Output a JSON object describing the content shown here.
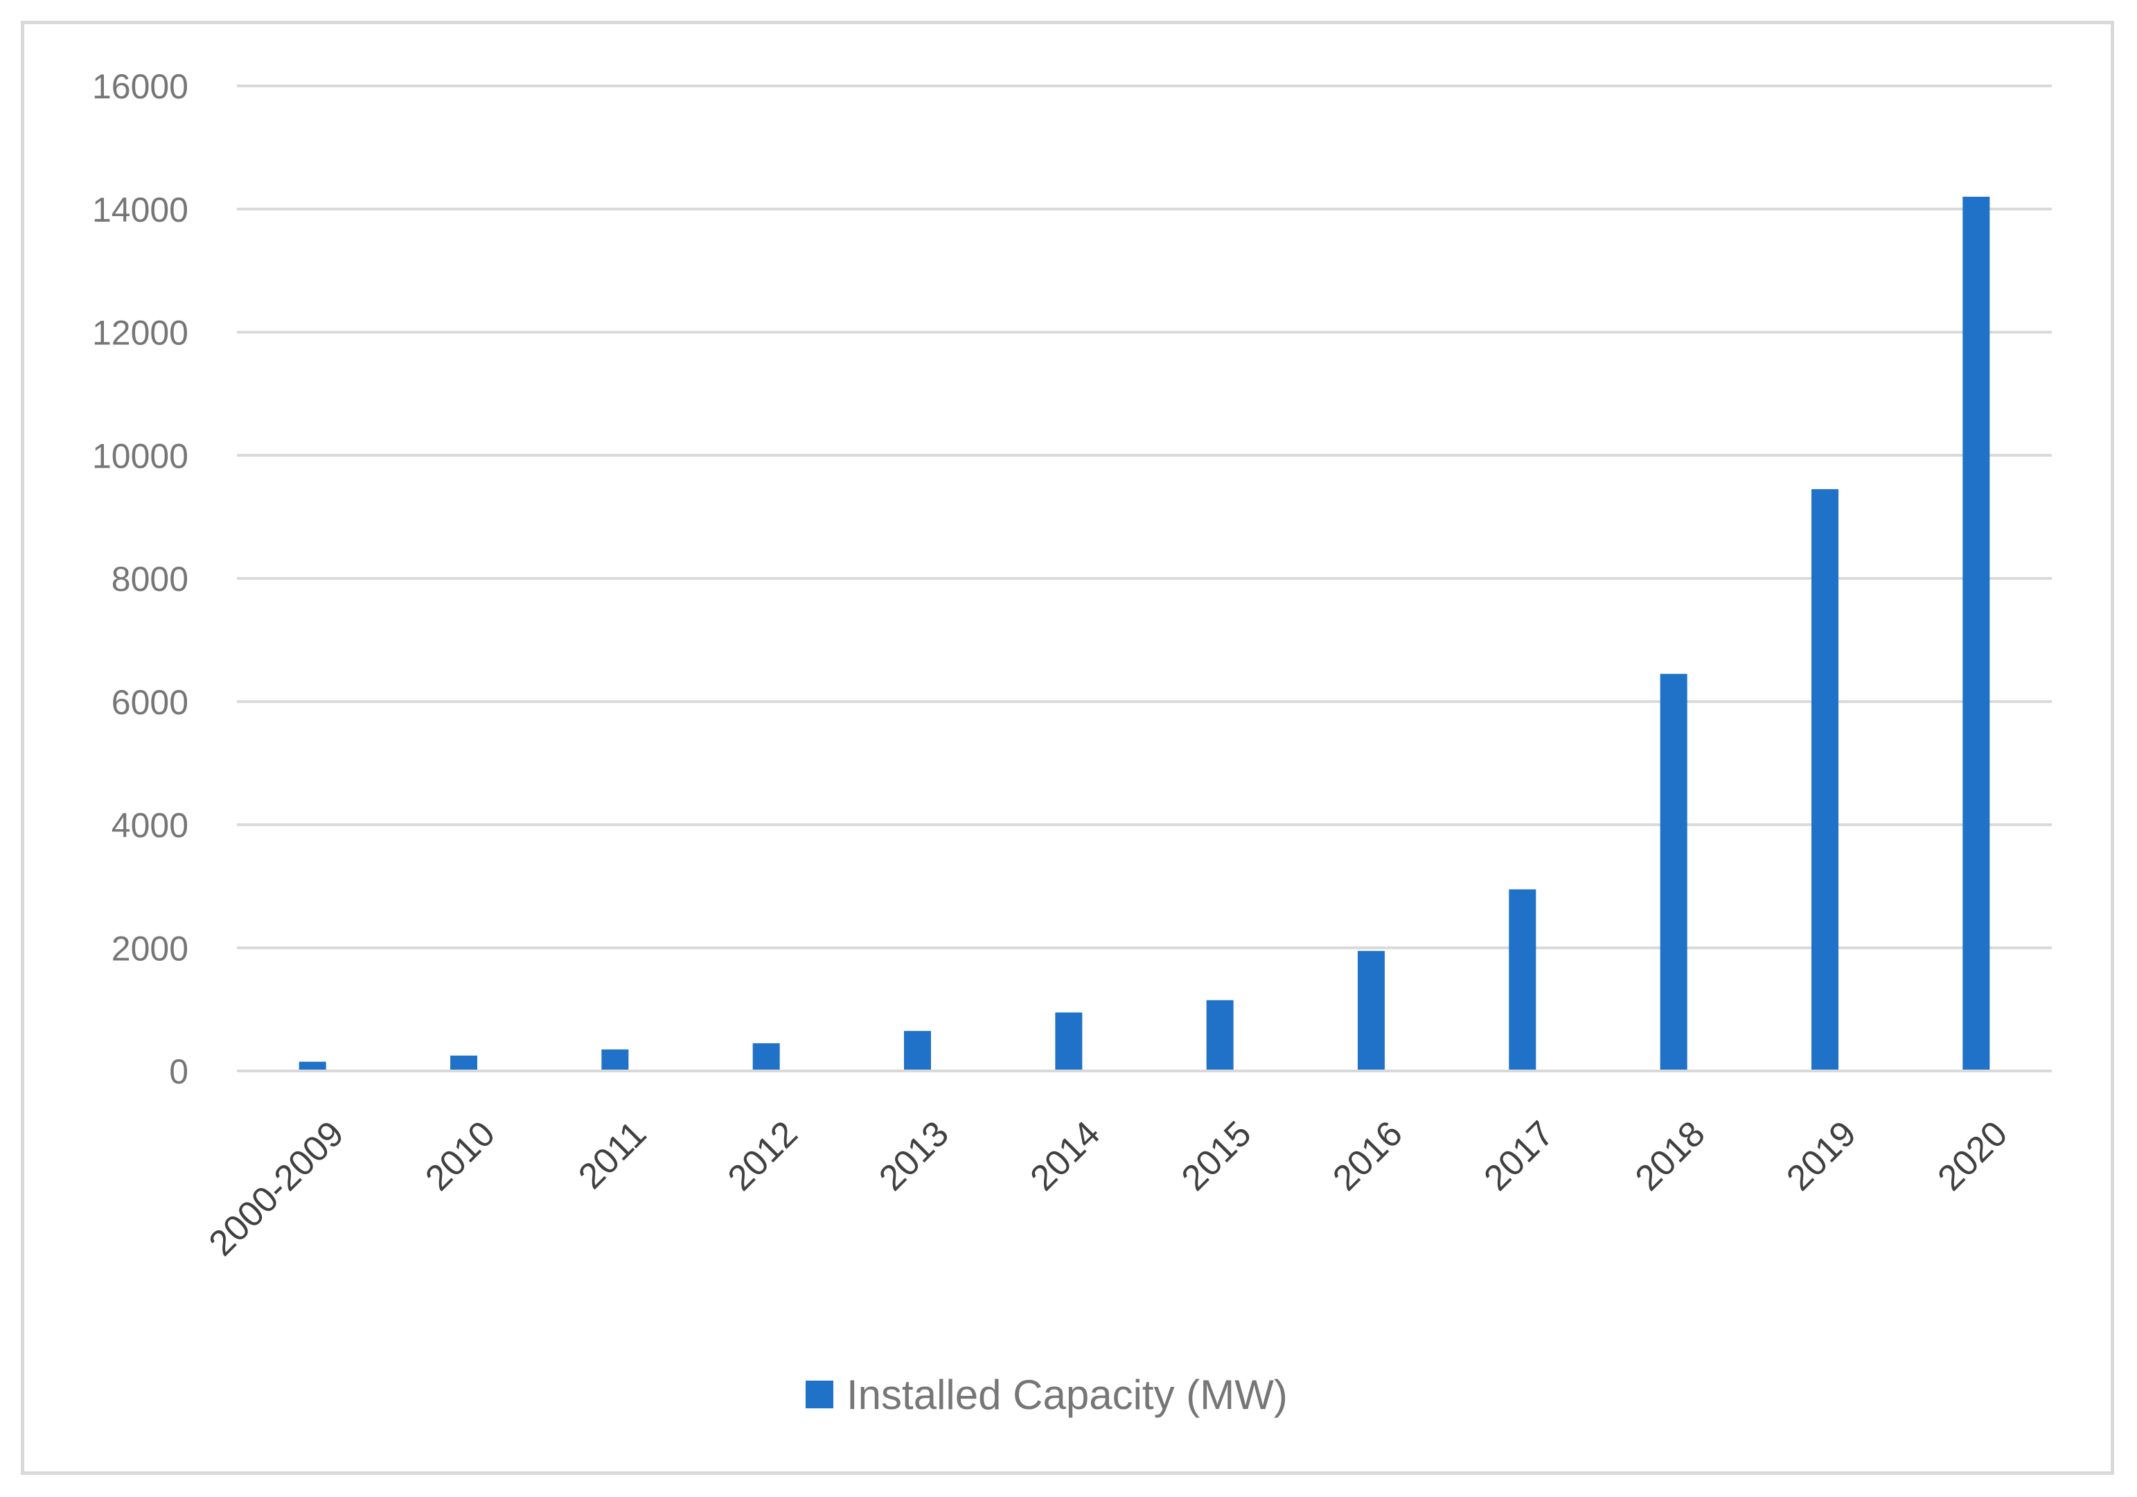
{
  "chart_data": {
    "type": "bar",
    "title": "",
    "xlabel": "",
    "ylabel": "",
    "categories": [
      "2000-2009",
      "2010",
      "2011",
      "2012",
      "2013",
      "2014",
      "2015",
      "2016",
      "2017",
      "2018",
      "2019",
      "2020"
    ],
    "series": [
      {
        "name": "Installed Capacity (MW)",
        "color": "#1f72c7",
        "values": [
          150,
          250,
          350,
          450,
          650,
          950,
          1150,
          1950,
          2950,
          6450,
          9450,
          14200
        ]
      }
    ],
    "y_ticks": [
      "0",
      "2000",
      "4000",
      "6000",
      "8000",
      "10000",
      "12000",
      "14000",
      "16000"
    ],
    "ylim": [
      0,
      16000
    ],
    "grid": true,
    "legend_position": "bottom-center",
    "gridline_color": "#d9d9d9"
  }
}
